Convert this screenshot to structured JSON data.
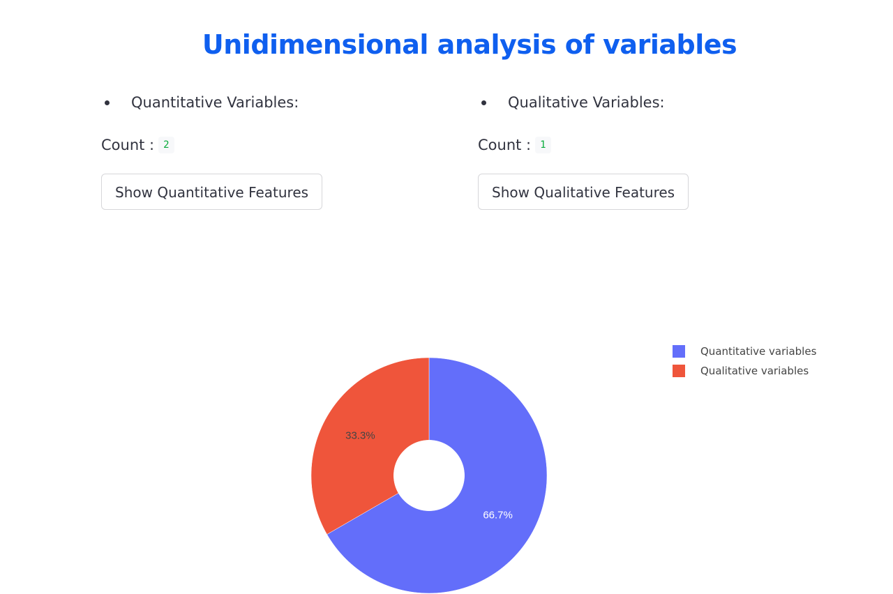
{
  "page": {
    "title": "Unidimensional analysis of variables",
    "accent": "#0f5fef"
  },
  "quantitative": {
    "bullet_label": "Quantitative Variables:",
    "count_label": "Count :",
    "count_value": "2",
    "button_label": "Show Quantitative Features"
  },
  "qualitative": {
    "bullet_label": "Qualitative Variables:",
    "count_label": "Count :",
    "count_value": "1",
    "button_label": "Show Qualitative Features"
  },
  "chart_data": {
    "type": "pie",
    "hole": 0.3,
    "categories": [
      "Quantitative variables",
      "Qualitative variables"
    ],
    "values": [
      2,
      1
    ],
    "percent_labels": [
      "66.7%",
      "33.3%"
    ],
    "colors": [
      "#636efa",
      "#ef553b"
    ],
    "label_colors": [
      "#ffffff",
      "#444444"
    ],
    "legend_position": "top-right",
    "title": ""
  }
}
